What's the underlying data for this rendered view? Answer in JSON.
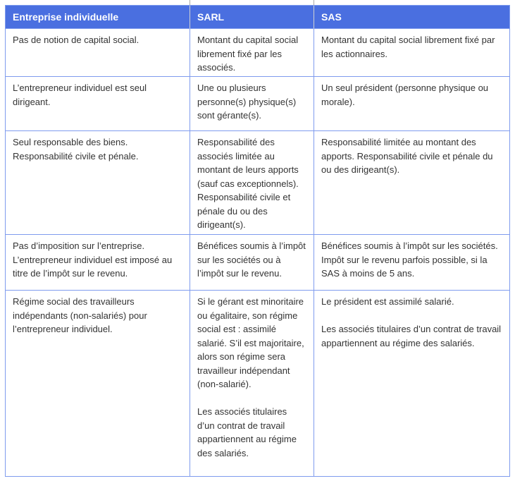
{
  "colors": {
    "header_bg": "#4a6fe0",
    "header_text": "#ffffff",
    "border": "#7f9cee",
    "header_divider": "#d2d2d2",
    "body_text": "#333333",
    "cropped_border": "#a9a9a9",
    "page_bg": "#ffffff"
  },
  "table": {
    "columns": [
      "Entreprise individuelle",
      "SARL",
      "SAS"
    ],
    "rows": [
      {
        "cells": [
          [
            "Pas de notion de capital social."
          ],
          [
            "Montant du capital social librement fixé par les associés."
          ],
          [
            "Montant du capital social librement fixé par les actionnaires."
          ]
        ]
      },
      {
        "cells": [
          [
            "L’entrepreneur individuel est seul dirigeant."
          ],
          [
            "Une ou plusieurs personne(s) physique(s) sont gérante(s)."
          ],
          [
            "Un seul président (personne physique ou morale)."
          ]
        ]
      },
      {
        "cells": [
          [
            "Seul responsable des biens. Responsabilité civile et pénale."
          ],
          [
            "Responsabilité des associés limitée au montant de leurs apports (sauf cas exceptionnels). Responsabilité civile et pénale du ou des dirigeant(s)."
          ],
          [
            "Responsabilité limitée au montant des apports. Responsabilité civile et pénale du ou des dirigeant(s)."
          ]
        ]
      },
      {
        "cells": [
          [
            "Pas d’imposition sur l’entreprise. L’entrepreneur individuel est imposé au titre de l’impôt sur le revenu."
          ],
          [
            "Bénéfices soumis à l’impôt sur les sociétés ou à l’impôt sur le revenu."
          ],
          [
            "Bénéfices soumis à l’impôt sur les sociétés. Impôt sur le revenu parfois possible, si la SAS à moins de 5 ans."
          ]
        ]
      },
      {
        "cells": [
          [
            "Régime social des travailleurs indépendants (non-salariés) pour l’entrepreneur individuel."
          ],
          [
            "Si le gérant est minoritaire ou égalitaire, son régime social est : assimilé salarié. S’il est majoritaire, alors son régime sera travailleur indépendant (non-salarié).",
            "Les associés titulaires d’un contrat de travail appartiennent au régime des salariés."
          ],
          [
            "Le président est assimilé salarié.",
            "Les associés titulaires d’un contrat de travail appartiennent au régime des salariés."
          ]
        ]
      }
    ]
  }
}
